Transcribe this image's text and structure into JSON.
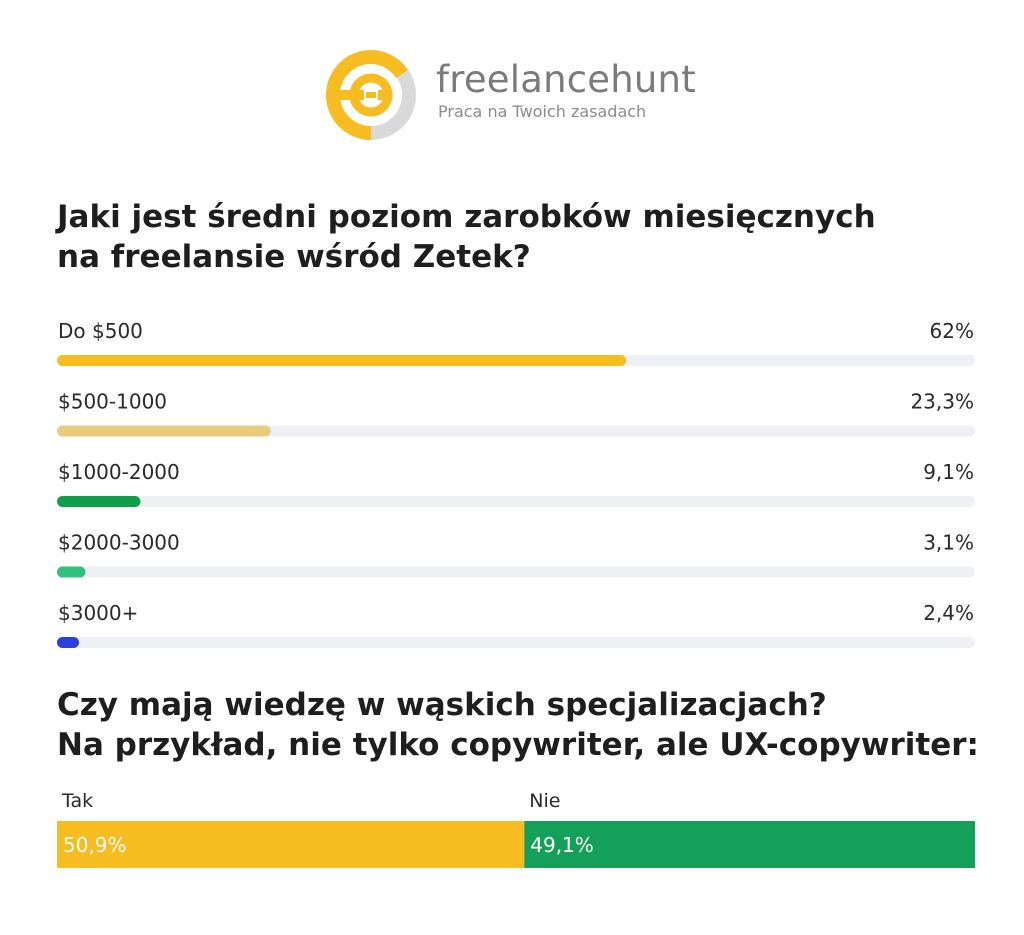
{
  "brand": {
    "name": "freelancehunt",
    "tagline": "Praca na Twoich zasadach",
    "colors": {
      "yellow": "#F6BC20",
      "gray": "#D9D9D9",
      "text": "#7B7B7B"
    }
  },
  "chart_data": [
    {
      "type": "bar",
      "orientation": "horizontal",
      "title": "Jaki jest średni poziom zarobków miesięcznych na freelansie wśród Zetek?",
      "title_lines": [
        "Jaki jest średni poziom zarobków miesięcznych",
        "na freelansie wśród Zetek?"
      ],
      "xlim": [
        0,
        100
      ],
      "categories": [
        "Do $500",
        "$500-1000",
        "$1000-2000",
        "$2000-3000",
        "$3000+"
      ],
      "values": [
        62,
        23.3,
        9.1,
        3.1,
        2.4
      ],
      "labels": [
        "62%",
        "23,3%",
        "9,1%",
        "3,1%",
        "2,4%"
      ],
      "colors": [
        "#F6BC20",
        "#E8CB7E",
        "#0E9F4B",
        "#2EC27A",
        "#2B3FE0"
      ],
      "track_color": "#EFF0F6",
      "grid": false,
      "legend": "none"
    },
    {
      "type": "bar",
      "orientation": "stacked-horizontal",
      "title": "Czy mają wiedzę w wąskich specjalizacjach? Na przykład, nie tylko copywriter, ale UX-copywriter:",
      "title_lines": [
        "Czy mają wiedzę w wąskich specjalizacjach?",
        "Na przykład, nie tylko copywriter, ale UX-copywriter:"
      ],
      "categories": [
        "Tak",
        "Nie"
      ],
      "values": [
        50.9,
        49.1
      ],
      "labels": [
        "50,9%",
        "49,1%"
      ],
      "colors": [
        "#F6BC20",
        "#14A058"
      ],
      "grid": false,
      "legend": "none"
    }
  ]
}
